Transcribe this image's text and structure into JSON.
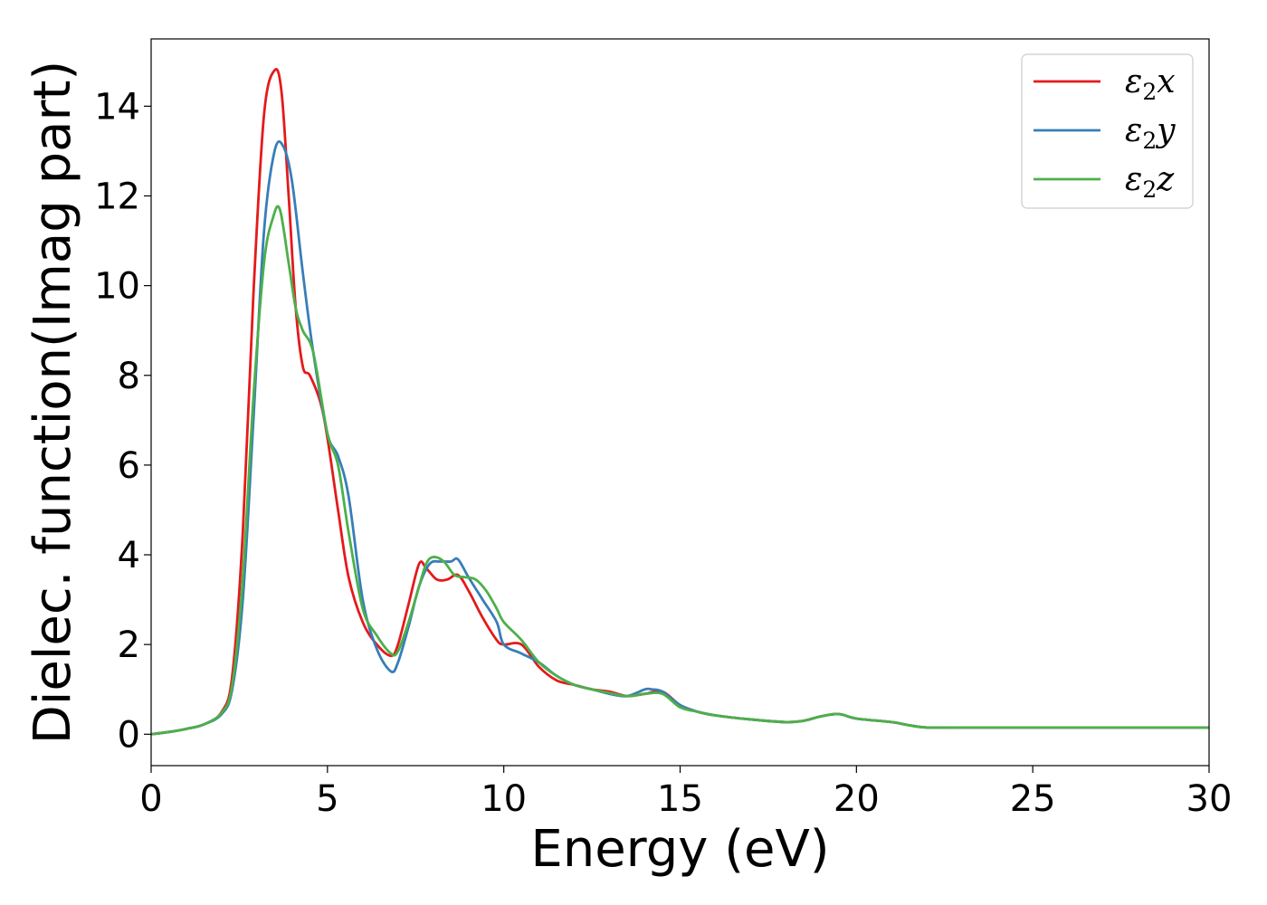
{
  "chart_data": {
    "type": "line",
    "title": "",
    "xlabel": "Energy (eV)",
    "ylabel": "Dielec. function(Imag part)",
    "xlim": [
      0,
      30
    ],
    "ylim": [
      -0.7,
      15.5
    ],
    "xticks": [
      0,
      5,
      10,
      15,
      20,
      25,
      30
    ],
    "yticks": [
      0,
      2,
      4,
      6,
      8,
      10,
      12,
      14
    ],
    "grid": false,
    "legend_position": "top-right",
    "series": [
      {
        "name": "ε2x",
        "legend_symbol": "ε",
        "legend_sub": "2",
        "legend_var": "x",
        "color": "#e41a1c",
        "x": [
          0,
          0.5,
          1,
          1.5,
          2,
          2.3,
          2.6,
          2.9,
          3.2,
          3.5,
          3.7,
          3.9,
          4.1,
          4.3,
          4.5,
          4.8,
          5.0,
          5.3,
          5.6,
          6.0,
          6.4,
          6.8,
          7.0,
          7.3,
          7.6,
          7.8,
          8.1,
          8.4,
          8.7,
          9.0,
          9.4,
          9.8,
          10.0,
          10.5,
          11.0,
          11.5,
          12.0,
          12.5,
          13.0,
          13.5,
          14.0,
          14.5,
          15.0,
          15.5,
          16.0,
          17.0,
          18.0,
          18.5,
          19.0,
          19.5,
          20.0,
          21.0,
          21.5,
          22.0,
          23.0,
          24.0,
          25.0,
          26.0,
          27.0,
          28.0,
          29.0,
          30.0
        ],
        "y": [
          0,
          0.05,
          0.12,
          0.22,
          0.5,
          1.3,
          4.5,
          9.8,
          13.8,
          14.8,
          14.3,
          12.0,
          9.5,
          8.2,
          8.0,
          7.4,
          6.6,
          5.0,
          3.5,
          2.5,
          2.0,
          1.75,
          2.0,
          2.9,
          3.8,
          3.7,
          3.45,
          3.45,
          3.55,
          3.2,
          2.6,
          2.1,
          2.0,
          2.0,
          1.5,
          1.2,
          1.1,
          1.0,
          0.95,
          0.85,
          0.9,
          0.95,
          0.65,
          0.5,
          0.42,
          0.33,
          0.27,
          0.3,
          0.4,
          0.45,
          0.35,
          0.27,
          0.2,
          0.15,
          0.15,
          0.15,
          0.15,
          0.15,
          0.15,
          0.15,
          0.15,
          0.15
        ]
      },
      {
        "name": "ε2y",
        "legend_symbol": "ε",
        "legend_sub": "2",
        "legend_var": "y",
        "color": "#377eb8",
        "x": [
          0,
          0.5,
          1,
          1.5,
          2,
          2.3,
          2.6,
          2.9,
          3.2,
          3.5,
          3.75,
          4.0,
          4.3,
          4.6,
          5.0,
          5.3,
          5.6,
          6.0,
          6.4,
          6.8,
          7.0,
          7.3,
          7.6,
          7.9,
          8.2,
          8.5,
          8.7,
          9.0,
          9.4,
          9.8,
          10.0,
          10.5,
          11.0,
          11.5,
          12.0,
          12.5,
          13.0,
          13.5,
          14.0,
          14.2,
          14.5,
          15.0,
          15.5,
          16.0,
          17.0,
          18.0,
          18.5,
          19.0,
          19.5,
          20.0,
          21.0,
          21.5,
          22.0,
          23.0,
          24.0,
          25.0,
          26.0,
          27.0,
          28.0,
          29.0,
          30.0
        ],
        "y": [
          0,
          0.05,
          0.12,
          0.22,
          0.45,
          1.0,
          3.0,
          7.0,
          11.2,
          13.0,
          13.1,
          12.3,
          10.3,
          8.5,
          6.7,
          6.2,
          5.3,
          3.0,
          1.9,
          1.4,
          1.6,
          2.4,
          3.3,
          3.8,
          3.85,
          3.85,
          3.9,
          3.5,
          3.0,
          2.5,
          2.0,
          1.8,
          1.6,
          1.3,
          1.1,
          1.0,
          0.9,
          0.85,
          1.0,
          1.0,
          0.95,
          0.65,
          0.5,
          0.42,
          0.33,
          0.27,
          0.3,
          0.4,
          0.45,
          0.35,
          0.27,
          0.2,
          0.15,
          0.15,
          0.15,
          0.15,
          0.15,
          0.15,
          0.15,
          0.15,
          0.15
        ]
      },
      {
        "name": "ε2z",
        "legend_symbol": "ε",
        "legend_sub": "2",
        "legend_var": "z",
        "color": "#4daf4a",
        "x": [
          0,
          0.5,
          1,
          1.5,
          2,
          2.3,
          2.6,
          2.9,
          3.2,
          3.45,
          3.65,
          3.9,
          4.1,
          4.3,
          4.6,
          5.0,
          5.3,
          5.6,
          6.0,
          6.4,
          6.8,
          7.0,
          7.3,
          7.6,
          7.8,
          8.0,
          8.3,
          8.6,
          8.9,
          9.2,
          9.5,
          9.8,
          10.0,
          10.5,
          11.0,
          11.5,
          12.0,
          12.5,
          13.0,
          13.5,
          14.0,
          14.5,
          15.0,
          15.5,
          16.0,
          17.0,
          18.0,
          18.5,
          19.0,
          19.5,
          20.0,
          21.0,
          21.5,
          22.0,
          23.0,
          24.0,
          25.0,
          26.0,
          27.0,
          28.0,
          29.0,
          30.0
        ],
        "y": [
          0,
          0.05,
          0.12,
          0.22,
          0.48,
          1.1,
          3.5,
          7.5,
          10.5,
          11.5,
          11.7,
          10.5,
          9.5,
          9.0,
          8.5,
          6.7,
          6.0,
          4.5,
          2.8,
          2.2,
          1.8,
          1.85,
          2.5,
          3.3,
          3.8,
          3.95,
          3.85,
          3.55,
          3.5,
          3.45,
          3.2,
          2.8,
          2.5,
          2.1,
          1.6,
          1.3,
          1.1,
          1.0,
          0.92,
          0.85,
          0.9,
          0.9,
          0.6,
          0.5,
          0.42,
          0.33,
          0.27,
          0.3,
          0.4,
          0.45,
          0.35,
          0.27,
          0.2,
          0.15,
          0.15,
          0.15,
          0.15,
          0.15,
          0.15,
          0.15,
          0.15,
          0.15
        ]
      }
    ]
  }
}
